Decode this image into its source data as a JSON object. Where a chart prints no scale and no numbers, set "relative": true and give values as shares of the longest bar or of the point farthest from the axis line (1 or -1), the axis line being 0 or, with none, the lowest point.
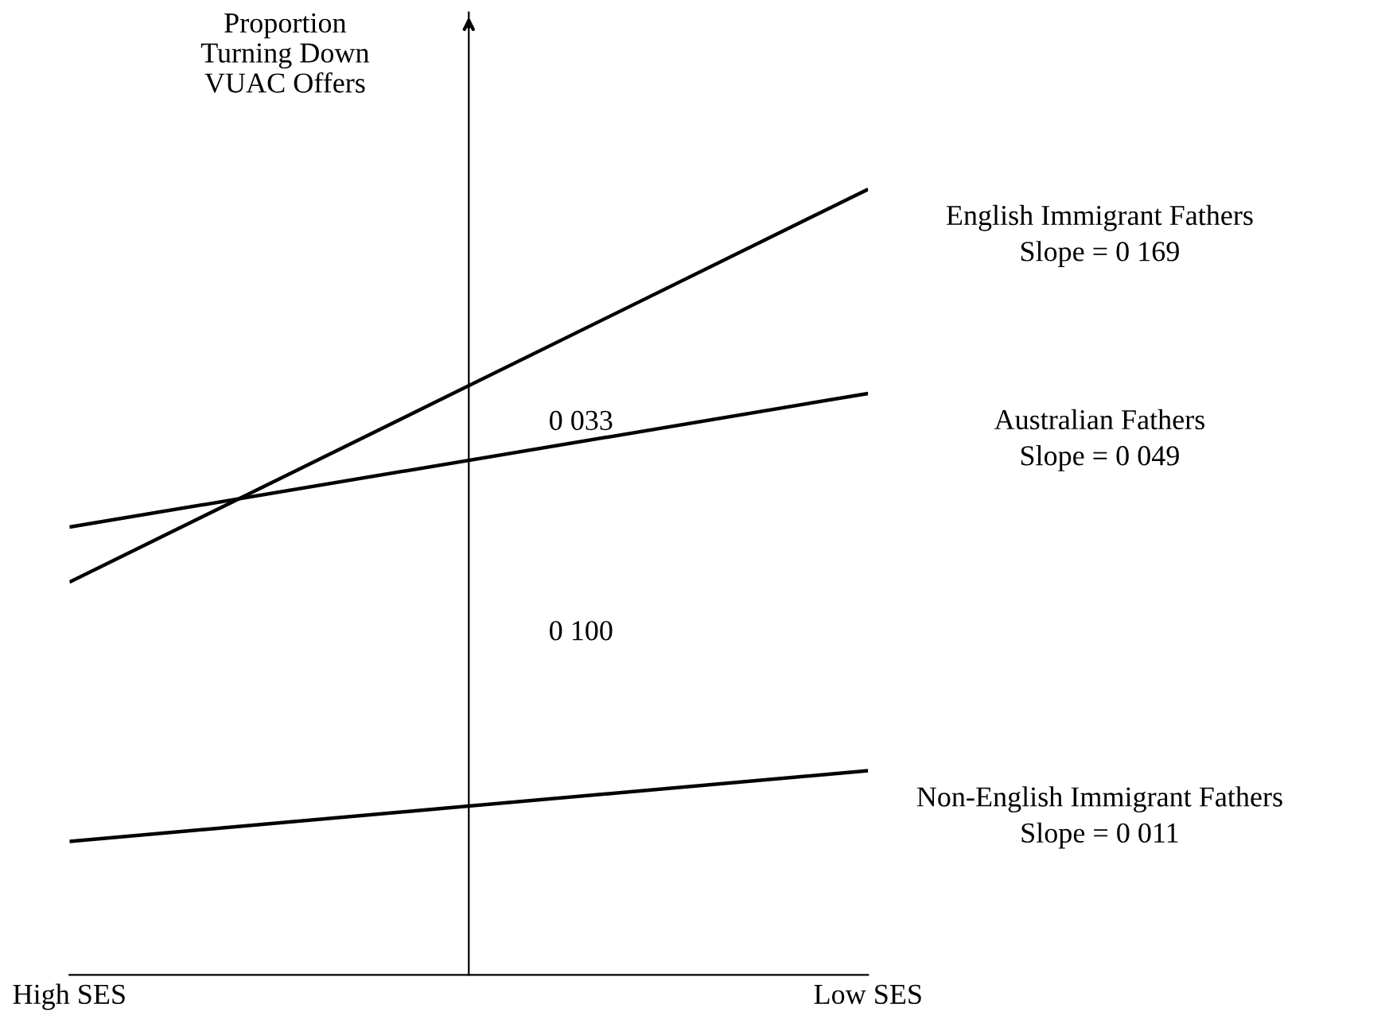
{
  "chart_data": {
    "type": "line",
    "relative": true,
    "ylabel": "Proportion\nTurning Down\nVUAC Offers",
    "categories": [
      "High SES",
      "Low SES"
    ],
    "tick_labels": "x",
    "grid": false,
    "legend": false,
    "marker": "none",
    "line_style": "solid",
    "series": [
      {
        "name": "English Immigrant Fathers",
        "color": "#000000",
        "values": [
          0.5,
          1.0
        ]
      },
      {
        "name": "Australian Fathers",
        "color": "#000000",
        "values": [
          0.57,
          0.74
        ]
      },
      {
        "name": "Non-English Immigrant Fathers",
        "color": "#000000",
        "values": [
          0.17,
          0.26
        ]
      }
    ],
    "annotations": [
      "Slope = 0 169",
      "Slope = 0 049",
      "Slope = 0 011",
      "0 033",
      "0 100"
    ]
  }
}
